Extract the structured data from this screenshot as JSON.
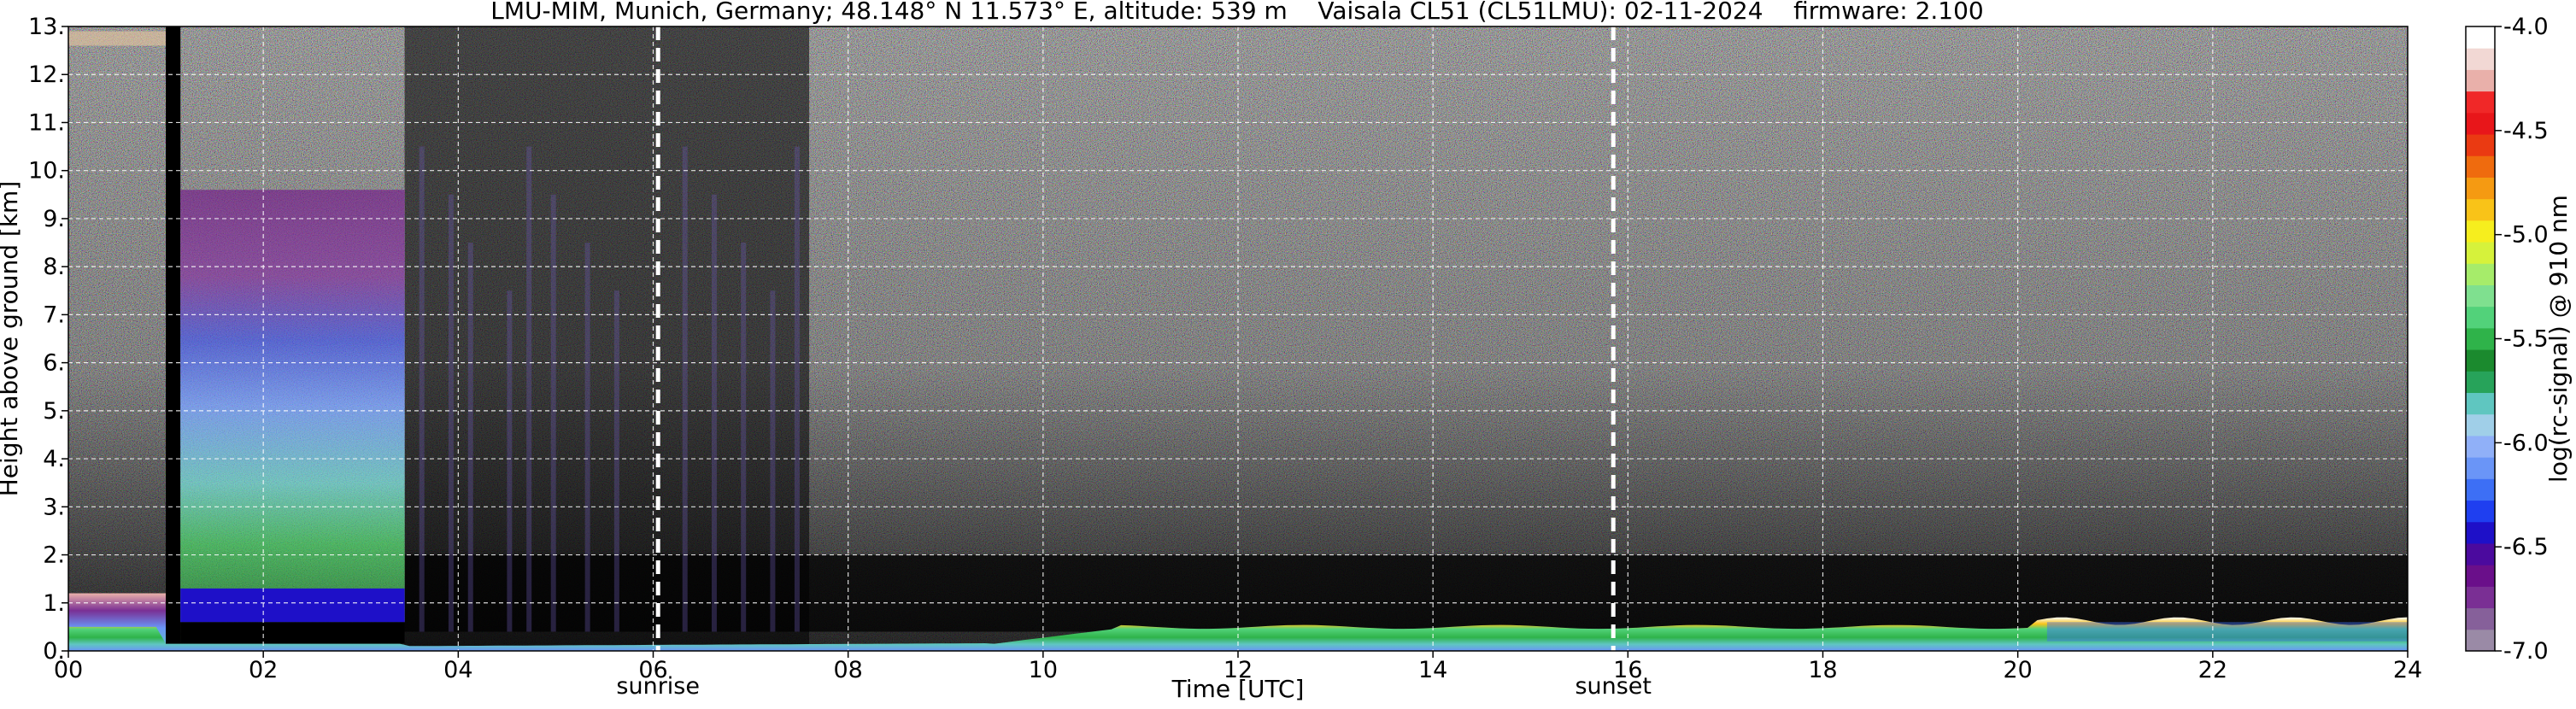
{
  "chart_data": {
    "type": "heatmap",
    "title": "LMU-MIM, Munich, Germany; 48.148° N 11.573° E, altitude: 539 m    Vaisala CL51 (CL51LMU): 02-11-2024    firmware: 2.100",
    "xlabel": "Time [UTC]",
    "ylabel": "Height above ground [km]",
    "xlim": [
      0,
      24
    ],
    "ylim": [
      0,
      13
    ],
    "x_ticks": [
      "00",
      "02",
      "04",
      "06",
      "08",
      "10",
      "12",
      "14",
      "16",
      "18",
      "20",
      "22",
      "24"
    ],
    "y_ticks": [
      "0.",
      "1.",
      "2.",
      "3.",
      "4.",
      "5.",
      "6.",
      "7.",
      "8.",
      "9.",
      "10.",
      "11.",
      "12.",
      "13."
    ],
    "grid": true,
    "colorbar": {
      "label": "log(rc-signal) @ 910 nm",
      "range": [
        -7.0,
        -4.0
      ],
      "ticks": [
        "-4.0",
        "-4.5",
        "-5.0",
        "-5.5",
        "-6.0",
        "-6.5",
        "-7.0"
      ],
      "colors": [
        "#9a8aa6",
        "#86609a",
        "#7a2f94",
        "#6a0f8a",
        "#4b0a9e",
        "#1e10c8",
        "#1f3ff0",
        "#3d6ff5",
        "#6a95f7",
        "#90b0f8",
        "#a0cfe8",
        "#5fc6c0",
        "#27a35a",
        "#1b8a2e",
        "#2fb34a",
        "#52d27a",
        "#7fe08f",
        "#a6ec6a",
        "#d6f23b",
        "#f6ee1e",
        "#f9c318",
        "#f59a12",
        "#ef6b0e",
        "#ea3a12",
        "#e8161a",
        "#f02828",
        "#e9b0aa",
        "#f2d8d4",
        "#ffffff"
      ]
    },
    "annotations": [
      {
        "text": "sunrise",
        "x": 6.05
      },
      {
        "text": "sunset",
        "x": 15.85
      }
    ],
    "features": [
      {
        "name": "aerosol layer (boundary)",
        "x": [
          0.0,
          24.0
        ],
        "top_km": 0.5
      },
      {
        "name": "cloud",
        "x": [
          1.15,
          3.45
        ],
        "base_km": 0.6,
        "top_km": 9.5
      },
      {
        "name": "no data",
        "x": [
          1.0,
          1.15
        ]
      },
      {
        "name": "boundary layer top (white)",
        "x": [
          0.0,
          24.0
        ],
        "height_km": 0.5
      }
    ]
  }
}
